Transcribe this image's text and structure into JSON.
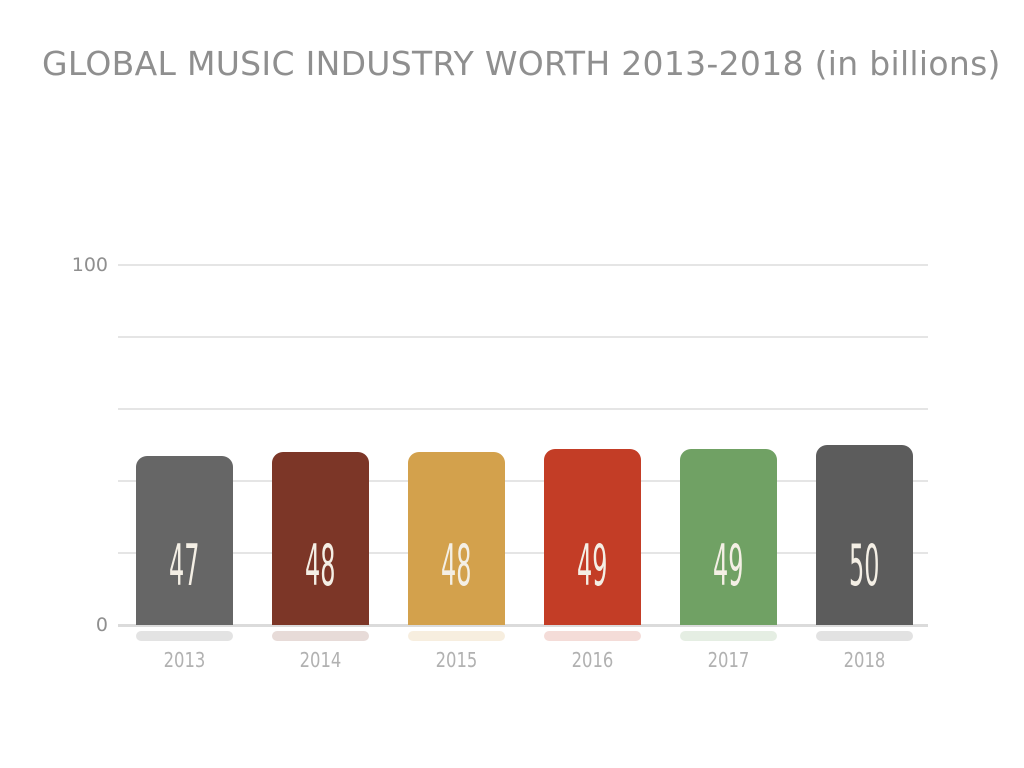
{
  "title": "GLOBAL MUSIC INDUSTRY WORTH 2013-2018 (in billions)",
  "chart_data": {
    "type": "bar",
    "title": "GLOBAL MUSIC INDUSTRY WORTH 2013-2018 (in billions)",
    "categories": [
      "2013",
      "2014",
      "2015",
      "2016",
      "2017",
      "2018"
    ],
    "values": [
      47,
      48,
      48,
      49,
      49,
      50
    ],
    "bar_colors": [
      "#666666",
      "#7c3627",
      "#d3a14c",
      "#c33d26",
      "#70a164",
      "#5c5c5c"
    ],
    "value_label_color": "#f4efe5",
    "xlabel": "",
    "ylabel": "",
    "ylim": [
      0,
      100
    ],
    "ytick_labels": [
      "100",
      "0"
    ],
    "gridline_values": [
      100,
      80,
      60,
      40,
      20
    ],
    "grid": true,
    "legend": false,
    "colors": {
      "title_text": "#8f8f8f",
      "axis_tick_text": "#8f8f8f",
      "category_text": "#b1b1b1",
      "gridline": "#e5e5e5",
      "baseline": "#dbdbdb",
      "background": "#ffffff"
    }
  }
}
